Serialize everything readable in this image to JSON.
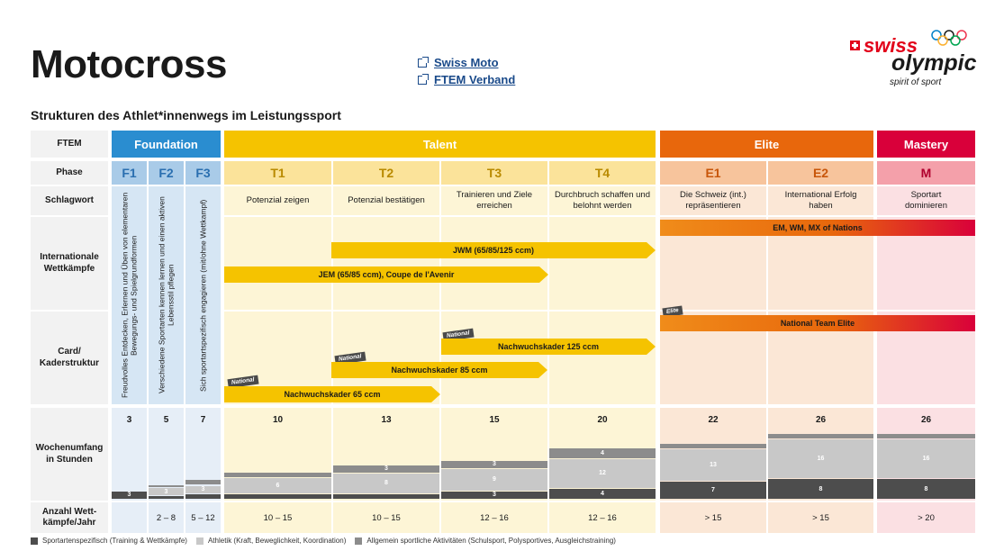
{
  "title": "Motocross",
  "links": [
    {
      "label": "Swiss Moto"
    },
    {
      "label": "FTEM Verband"
    }
  ],
  "logo": {
    "brand1": "swiss",
    "brand2": "olympic",
    "tagline": "spirit of sport"
  },
  "subtitle": "Strukturen des Athlet*innenwegs im Leistungssport",
  "row_labels": {
    "ftem": "FTEM",
    "phase": "Phase",
    "schlagwort": "Schlagwort",
    "wettkaempfe": "Internationale Wettkämpfe",
    "kader": "Card/ Kaderstruktur",
    "wochenumfang": "Wochenumfang in Stunden",
    "anzahl": "Anzahl Wett-kämpfe/Jahr"
  },
  "ftem_bars": {
    "foundation": "Foundation",
    "talent": "Talent",
    "elite": "Elite",
    "mastery": "Mastery"
  },
  "phases": [
    "F1",
    "F2",
    "F3",
    "T1",
    "T2",
    "T3",
    "T4",
    "E1",
    "E2",
    "M"
  ],
  "schlagworte": [
    "Potenzial zeigen",
    "Potenzial bestätigen",
    "Trainieren und Ziele erreichen",
    "Durchbruch schaffen und belohnt werden",
    "Die Schweiz (int.) repräsentieren",
    "International Erfolg haben",
    "Sportart dominieren"
  ],
  "foundation_texts": [
    "Freudvolles Entdecken, Erlernen und Üben von elementaren Bewegungs- und Spielgrundformen",
    "Verschiedene Sportarten kennen lernen und einen aktiven Lebensstil pflegen",
    "Sich sportartspezifisch engagieren (mit/ohne Wettkampf)"
  ],
  "competitions": {
    "em_wm": "EM, WM, MX of Nations",
    "jwm": "JWM (65/85/125 ccm)",
    "jem": "JEM (65/85 ccm), Coupe de l'Avenir"
  },
  "kader": {
    "elite_tag": "Elite",
    "national_team": "National Team Elite",
    "national_tag": "National",
    "k125": "Nachwuchskader 125 ccm",
    "k85": "Nachwuchskader 85 ccm",
    "k65": "Nachwuchskader 65 ccm"
  },
  "hours_totals": [
    "3",
    "5",
    "7",
    "10",
    "13",
    "15",
    "20",
    "22",
    "26",
    "26"
  ],
  "hours_breakdown": [
    {
      "specific": "3",
      "athletic": "",
      "general": ""
    },
    {
      "specific": "1",
      "athletic": "3",
      "general": "1"
    },
    {
      "specific": "2",
      "athletic": "3",
      "general": "2"
    },
    {
      "specific": "2",
      "athletic": "6",
      "general": "2"
    },
    {
      "specific": "2",
      "athletic": "8",
      "general": "3"
    },
    {
      "specific": "3",
      "athletic": "9",
      "general": "3"
    },
    {
      "specific": "4",
      "athletic": "12",
      "general": "4"
    },
    {
      "specific": "7",
      "athletic": "13",
      "general": "2"
    },
    {
      "specific": "8",
      "athletic": "16",
      "general": "2"
    },
    {
      "specific": "8",
      "athletic": "16",
      "general": "2"
    }
  ],
  "competitions_per_year": [
    "",
    "2 – 8",
    "5 – 12",
    "10 – 15",
    "10 – 15",
    "12 – 16",
    "12 – 16",
    "> 15",
    "> 15",
    "> 20"
  ],
  "legend": [
    {
      "label": "Sportartenspezifisch (Training & Wettkämpfe)",
      "color": "#4d4d4d"
    },
    {
      "label": "Athletik (Kraft, Beweglichkeit, Koordination)",
      "color": "#c8c8c8"
    },
    {
      "label": "Allgemein sportliche Aktivitäten (Schulsport, Polysportives, Ausgleichstraining)",
      "color": "#8c8c8c"
    }
  ],
  "colors": {
    "foundation": "#2a8dd0",
    "talent": "#f5c300",
    "elite": "#e8670c",
    "mastery": "#d9003a"
  }
}
